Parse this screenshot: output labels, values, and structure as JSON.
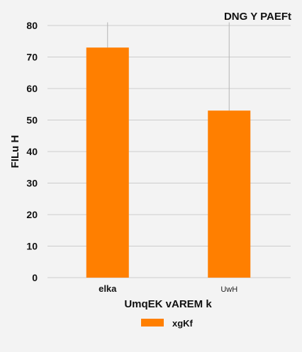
{
  "chart_data": {
    "type": "bar",
    "title": "DNG  Y PAEFt",
    "xlabel": "UmqEK vAREM k",
    "ylabel": "FILu H",
    "categories": [
      "elka",
      "UwH"
    ],
    "series": [
      {
        "name": "xgKf",
        "values": [
          73,
          53
        ],
        "error_high": [
          81,
          81
        ]
      }
    ],
    "ylim": [
      0,
      80
    ],
    "yticks": [
      0,
      10,
      20,
      30,
      40,
      50,
      60,
      70,
      80
    ],
    "grid": true,
    "legend_position": "bottom-center",
    "bar_color": "#ff7f00",
    "grid_color": "#cccccc",
    "background": "#f3f3f3"
  }
}
